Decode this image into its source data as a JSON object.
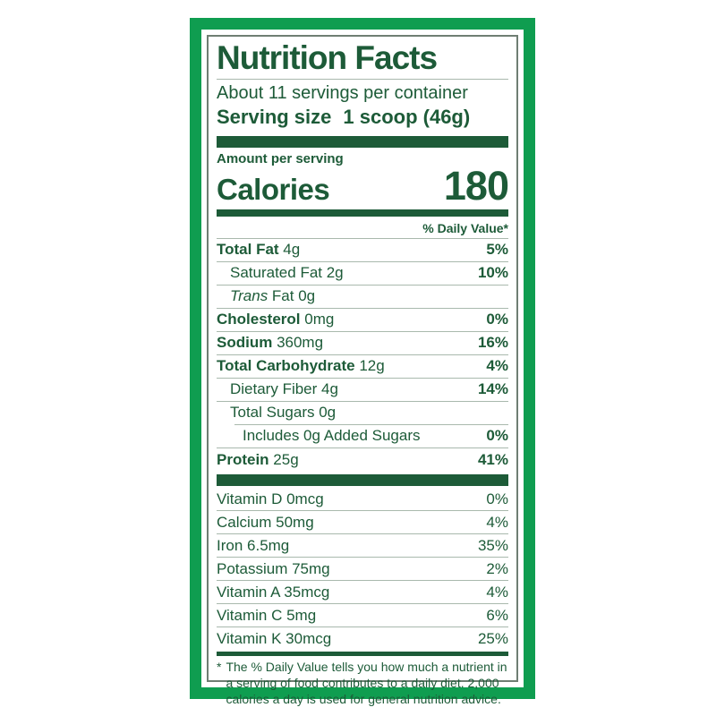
{
  "colors": {
    "frame_green": "#0f9d50",
    "text_green": "#1d5b38",
    "hairline_gray": "#a9b9ad",
    "inner_border_gray": "#6f7e73"
  },
  "label": {
    "title": "Nutrition Facts",
    "servings_per_container": "About 11 servings per container",
    "serving_size_label": "Serving size",
    "serving_size_value": "1 scoop (46g)",
    "amount_per_serving": "Amount per serving",
    "calories_label": "Calories",
    "calories_value": "180",
    "daily_value_header": "% Daily Value*",
    "nutrients": [
      {
        "bold": "Total Fat",
        "text": " 4g",
        "dv": "5%",
        "indent": 0,
        "dv_bold": true,
        "rule": "none"
      },
      {
        "bold": "",
        "text": "Saturated Fat 2g",
        "dv": "10%",
        "indent": 1,
        "dv_bold": true,
        "rule": "full"
      },
      {
        "bold": "",
        "italic": "Trans",
        "text": " Fat 0g",
        "dv": "",
        "indent": 1,
        "dv_bold": false,
        "rule": "full"
      },
      {
        "bold": "Cholesterol",
        "text": " 0mg",
        "dv": "0%",
        "indent": 0,
        "dv_bold": true,
        "rule": "full"
      },
      {
        "bold": "Sodium",
        "text": " 360mg",
        "dv": "16%",
        "indent": 0,
        "dv_bold": true,
        "rule": "full"
      },
      {
        "bold": "Total Carbohydrate",
        "text": " 12g",
        "dv": "4%",
        "indent": 0,
        "dv_bold": true,
        "rule": "full"
      },
      {
        "bold": "",
        "text": "Dietary Fiber 4g",
        "dv": "14%",
        "indent": 1,
        "dv_bold": true,
        "rule": "full"
      },
      {
        "bold": "",
        "text": "Total Sugars 0g",
        "dv": "",
        "indent": 1,
        "dv_bold": false,
        "rule": "full"
      },
      {
        "bold": "",
        "text": "Includes 0g Added Sugars",
        "dv": "0%",
        "indent": 2,
        "dv_bold": true,
        "rule": "inset"
      },
      {
        "bold": "Protein",
        "text": " 25g",
        "dv": "41%",
        "indent": 0,
        "dv_bold": true,
        "rule": "full"
      }
    ],
    "vitamins": [
      {
        "text": "Vitamin D 0mcg",
        "dv": "0%"
      },
      {
        "text": "Calcium 50mg",
        "dv": "4%"
      },
      {
        "text": "Iron 6.5mg",
        "dv": "35%"
      },
      {
        "text": "Potassium 75mg",
        "dv": "2%"
      },
      {
        "text": "Vitamin A 35mcg",
        "dv": "4%"
      },
      {
        "text": "Vitamin C 5mg",
        "dv": "6%"
      },
      {
        "text": "Vitamin K 30mcg",
        "dv": "25%"
      }
    ],
    "footnote_marker": "*",
    "footnote": "The % Daily Value tells you how much a nutrient in a serving of food contributes to a daily diet. 2,000 calories a day is used for general nutrition advice."
  }
}
